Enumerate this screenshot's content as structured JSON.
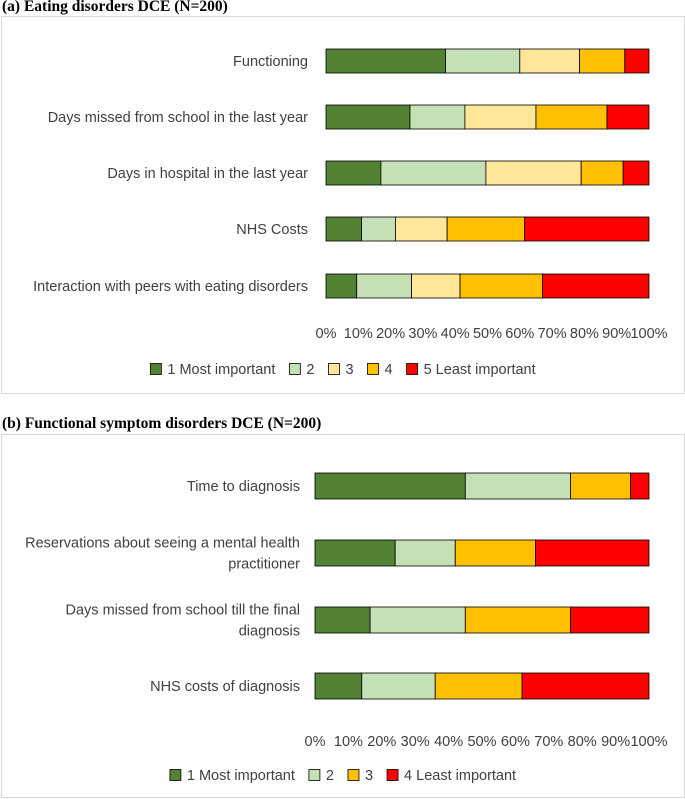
{
  "chart_data": [
    {
      "type": "bar",
      "orientation": "horizontal",
      "stacked": "percent",
      "title": "(a) Eating disorders DCE (N=200)",
      "categories": [
        "Functioning",
        "Days missed from school in the last year",
        "Days in hospital in the last year",
        "NHS Costs",
        "Interaction with peers with eating disorders"
      ],
      "series": [
        {
          "name": "1 Most important",
          "color": "#548235",
          "values": [
            37,
            26,
            17,
            11,
            9.5
          ]
        },
        {
          "name": "2",
          "color": "#c5e0b4",
          "values": [
            23,
            17,
            32.5,
            10.5,
            17
          ]
        },
        {
          "name": "3",
          "color": "#ffe699",
          "values": [
            18.5,
            22,
            29.5,
            16,
            15
          ]
        },
        {
          "name": "4",
          "color": "#ffc000",
          "values": [
            14,
            22,
            13,
            24,
            25.5
          ]
        },
        {
          "name": "5 Least important",
          "color": "#ff0000",
          "values": [
            7.5,
            13,
            8,
            38.5,
            33
          ]
        }
      ],
      "xlim": [
        0,
        100
      ],
      "xticks": [
        "0%",
        "10%",
        "20%",
        "30%",
        "40%",
        "50%",
        "60%",
        "70%",
        "80%",
        "90%",
        "100%"
      ],
      "grid": false,
      "legend": "bottom"
    },
    {
      "type": "bar",
      "orientation": "horizontal",
      "stacked": "percent",
      "title": "(b) Functional symptom disorders DCE (N=200)",
      "categories": [
        [
          "Time to diagnosis"
        ],
        [
          "Reservations about seeing a mental health",
          "practitioner"
        ],
        [
          "Days missed from school till the final",
          "diagnosis"
        ],
        [
          "NHS costs of diagnosis"
        ]
      ],
      "series": [
        {
          "name": "1 Most important",
          "color": "#548235",
          "values": [
            45,
            24,
            16.5,
            14
          ]
        },
        {
          "name": "2",
          "color": "#c5e0b4",
          "values": [
            31.5,
            18,
            28.5,
            22
          ]
        },
        {
          "name": "3",
          "color": "#ffc000",
          "values": [
            18,
            24,
            31.5,
            26
          ]
        },
        {
          "name": "4 Least important",
          "color": "#ff0000",
          "values": [
            5.5,
            34,
            23.5,
            38
          ]
        }
      ],
      "xlim": [
        0,
        100
      ],
      "xticks": [
        "0%",
        "10%",
        "20%",
        "30%",
        "40%",
        "50%",
        "60%",
        "70%",
        "80%",
        "90%",
        "100%"
      ],
      "grid": false,
      "legend": "bottom"
    }
  ]
}
